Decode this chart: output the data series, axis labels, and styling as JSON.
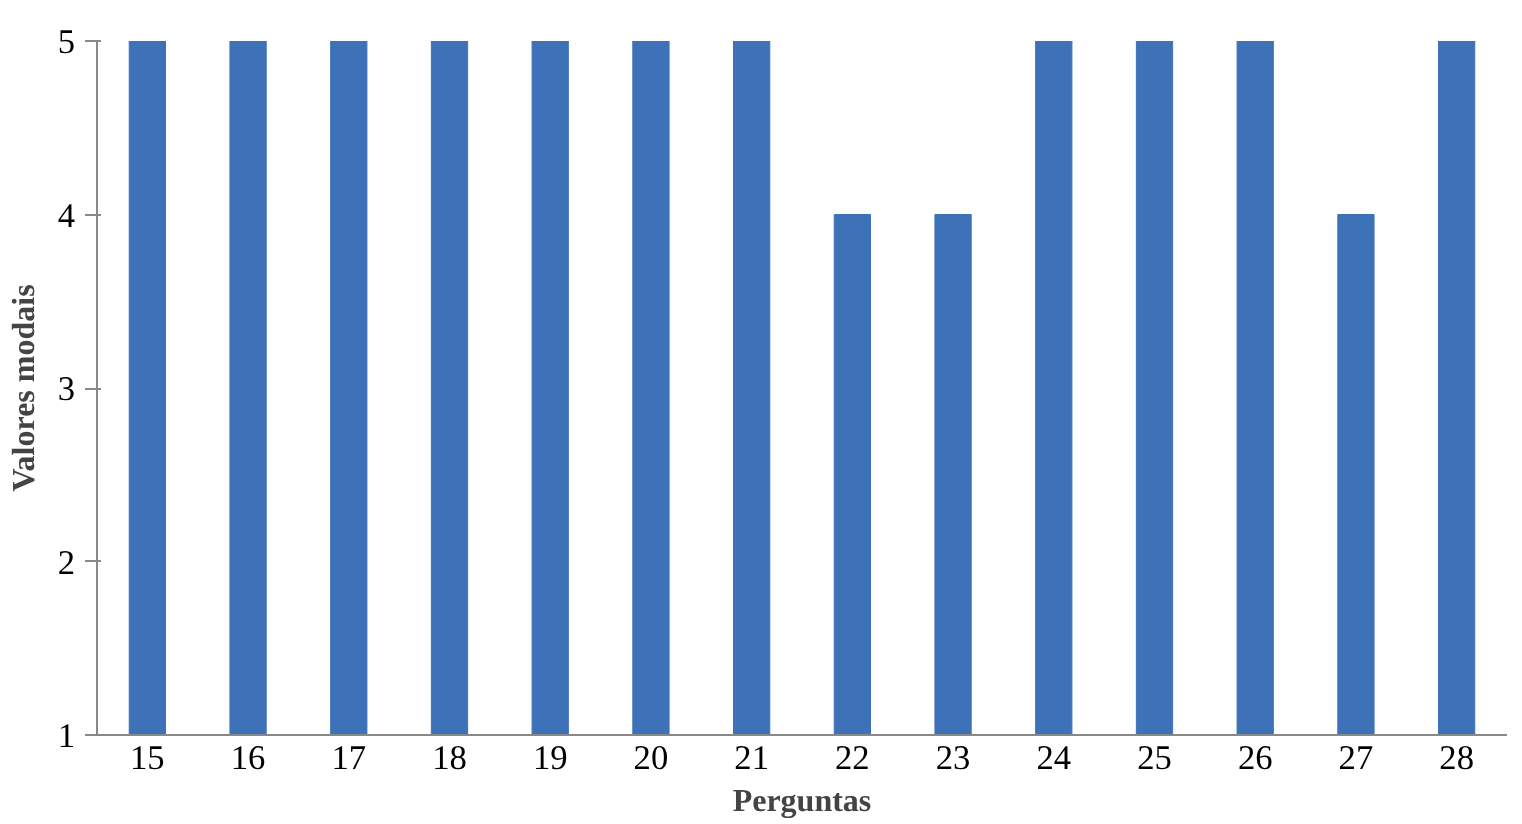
{
  "chart_data": {
    "type": "bar",
    "xlabel": "Perguntas",
    "ylabel": "Valores modais",
    "categories": [
      "15",
      "16",
      "17",
      "18",
      "19",
      "20",
      "21",
      "22",
      "23",
      "24",
      "25",
      "26",
      "27",
      "28"
    ],
    "values": [
      5,
      5,
      5,
      5,
      5,
      5,
      5,
      4,
      4,
      5,
      5,
      5,
      4,
      5
    ],
    "color": "#3d72b8",
    "ylim": [
      1,
      5
    ],
    "yticks": [
      1,
      2,
      3,
      4,
      5
    ],
    "grid": false
  }
}
